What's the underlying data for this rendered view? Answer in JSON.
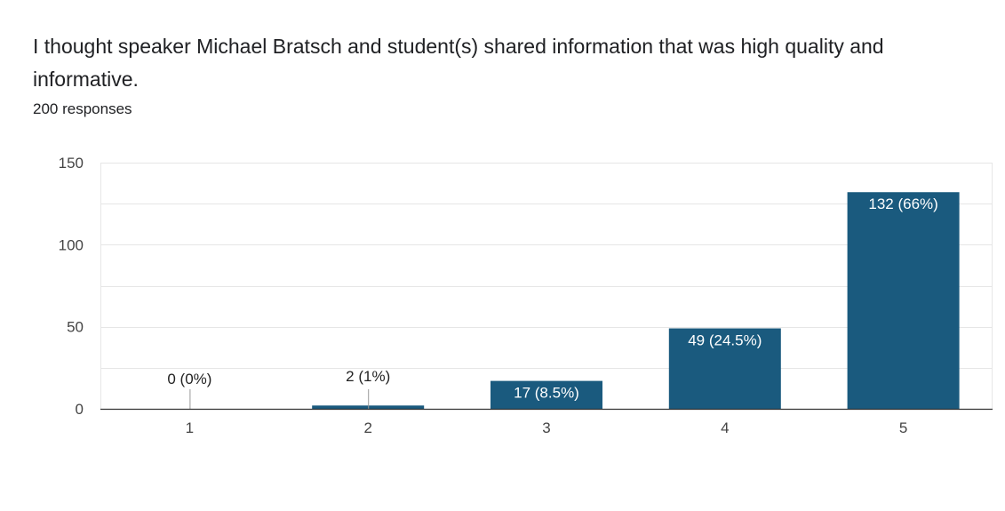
{
  "question": {
    "title": "I thought speaker Michael Bratsch and student(s) shared information that was high quality and informative.",
    "responses": "200 responses"
  },
  "colors": {
    "bar": "#1a5a7e",
    "gridline": "#e6e6e6",
    "axis": "#333333",
    "leader": "#999999"
  },
  "chart_data": {
    "type": "bar",
    "categories": [
      "1",
      "2",
      "3",
      "4",
      "5"
    ],
    "values": [
      0,
      2,
      17,
      49,
      132
    ],
    "data_labels": [
      "0 (0%)",
      "2 (1%)",
      "17 (8.5%)",
      "49 (24.5%)",
      "132 (66%)"
    ],
    "yticks": [
      0,
      50,
      100,
      150
    ],
    "ylim": [
      0,
      150
    ],
    "grid": true,
    "legend": "none",
    "title": "",
    "xlabel": "",
    "ylabel": ""
  }
}
